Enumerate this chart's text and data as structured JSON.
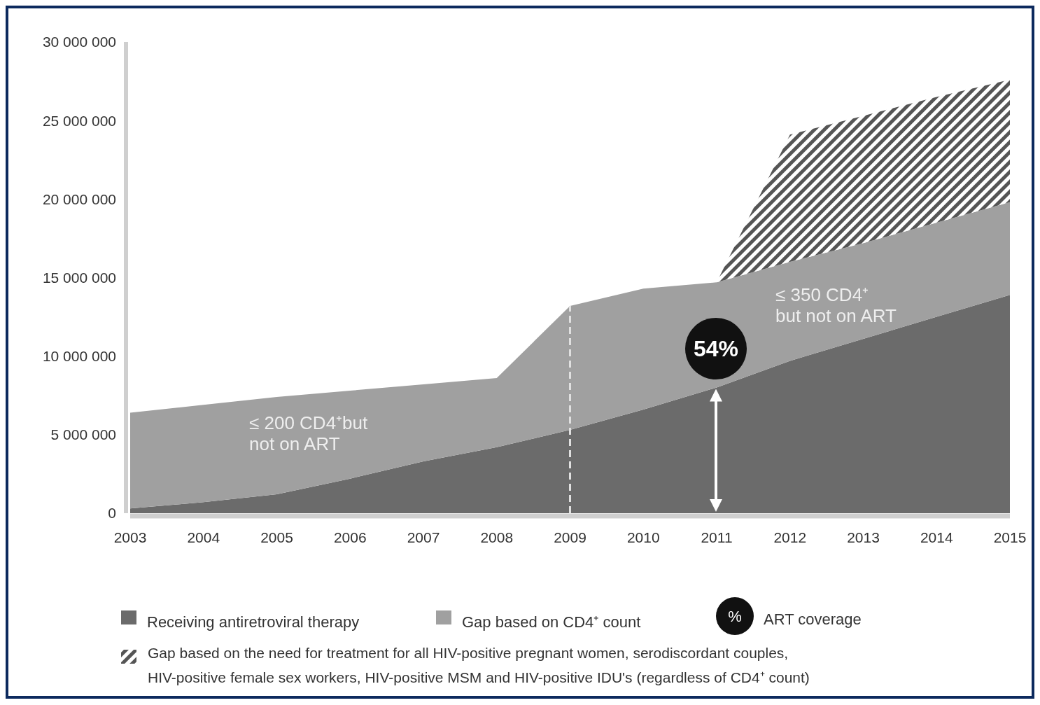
{
  "chart_data": {
    "type": "area",
    "stacked": true,
    "x": [
      2003,
      2004,
      2005,
      2006,
      2007,
      2008,
      2009,
      2010,
      2011,
      2012,
      2013,
      2014,
      2015
    ],
    "xlim": [
      2003,
      2015
    ],
    "xticks": [
      2003,
      2004,
      2005,
      2006,
      2007,
      2008,
      2009,
      2010,
      2011,
      2012,
      2013,
      2014,
      2015
    ],
    "ylim": [
      0,
      30000000
    ],
    "yticks": [
      0,
      {
        "value": 5000000,
        "label": "5 000 000"
      },
      {
        "value": 10000000,
        "label": "10 000 000"
      },
      {
        "value": 15000000,
        "label": "15 000 000"
      },
      {
        "value": 20000000,
        "label": "20 000 000"
      },
      {
        "value": 25000000,
        "label": "25 000 000"
      },
      {
        "value": 30000000,
        "label": "30 000 000"
      }
    ],
    "series": [
      {
        "name": "Receiving antiretroviral therapy",
        "color": "#6b6b6b",
        "values": [
          300000,
          700000,
          1200000,
          2200000,
          3300000,
          4200000,
          5300000,
          6600000,
          8000000,
          9700000,
          11100000,
          12500000,
          13900000
        ]
      },
      {
        "name": "Gap based on CD4⁺ count",
        "color": "#a0a0a0",
        "values": [
          6100000,
          6200000,
          6200000,
          5600000,
          4900000,
          4400000,
          7900000,
          7700000,
          6700000,
          6300000,
          6100000,
          6000000,
          5900000
        ]
      },
      {
        "name": "Gap based on the need for treatment for all HIV-positive pregnant women, serodiscordant couples, HIV-positive female sex workers, HIV-positive MSM and HIV-positive IDU's (regardless of CD4⁺ count)",
        "color": "#555555",
        "values": [
          null,
          null,
          null,
          null,
          null,
          null,
          null,
          null,
          0,
          8100000,
          8100000,
          8000000,
          7800000
        ]
      }
    ],
    "ref_lines": [
      {
        "axis": "x",
        "value": 2009,
        "color": "#e0e0e0",
        "line_style": "dashed"
      }
    ],
    "annotations": [
      "≤ 200 CD4⁺but\nnot on ART",
      "≤ 350 CD4⁺\nbut not on ART",
      "54%",
      "%",
      "ART coverage"
    ],
    "legend": "bottom"
  }
}
